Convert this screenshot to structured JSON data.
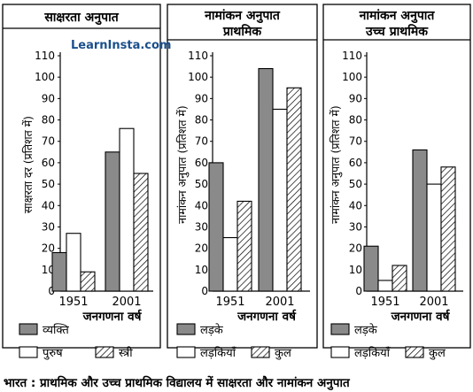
{
  "watermark": "LearnInsta.com",
  "caption": "भारत : प्राथमिक और उच्च प्राथमिक विद्यालय में साक्षरता और नामांकन अनुपात",
  "colors": {
    "gray": "#8a8a8a",
    "white": "#ffffff",
    "stroke": "#000000"
  },
  "chart_data": [
    {
      "type": "bar",
      "title": "साक्षरता अनुपात",
      "title2": "",
      "ylabel": "साक्षरता दर (प्रतिशत में)",
      "xlabel": "जनगणना वर्ष",
      "ylim": [
        0,
        110
      ],
      "yticks": [
        0,
        10,
        20,
        30,
        40,
        50,
        60,
        70,
        80,
        90,
        100,
        110
      ],
      "categories": [
        "1951",
        "2001"
      ],
      "series": [
        {
          "name": "व्यक्ति",
          "fill": "gray",
          "values": [
            18,
            65
          ]
        },
        {
          "name": "पुरुष",
          "fill": "white",
          "values": [
            27,
            76
          ]
        },
        {
          "name": "स्त्री",
          "fill": "hatch",
          "values": [
            9,
            55
          ]
        }
      ]
    },
    {
      "type": "bar",
      "title": "नामांकन अनुपात",
      "title2": "प्राथमिक",
      "ylabel": "नामांकन अनुपात (प्रतिशत में)",
      "xlabel": "जनगणना वर्ष",
      "ylim": [
        0,
        110
      ],
      "yticks": [
        0,
        10,
        20,
        30,
        40,
        50,
        60,
        70,
        80,
        90,
        100,
        110
      ],
      "categories": [
        "1951",
        "2001"
      ],
      "series": [
        {
          "name": "लड़के",
          "fill": "gray",
          "values": [
            60,
            104
          ]
        },
        {
          "name": "लड़कियाँ",
          "fill": "white",
          "values": [
            25,
            85
          ]
        },
        {
          "name": "कुल",
          "fill": "hatch",
          "values": [
            42,
            95
          ]
        }
      ]
    },
    {
      "type": "bar",
      "title": "नामांकन अनुपात",
      "title2": "उच्च प्राथमिक",
      "ylabel": "नामांकन अनुपात (प्रतिशत में)",
      "xlabel": "जनगणना वर्ष",
      "ylim": [
        0,
        110
      ],
      "yticks": [
        0,
        10,
        20,
        30,
        40,
        50,
        60,
        70,
        80,
        90,
        100,
        110
      ],
      "categories": [
        "1951",
        "2001"
      ],
      "series": [
        {
          "name": "लड़के",
          "fill": "gray",
          "values": [
            21,
            66
          ]
        },
        {
          "name": "लड़कियाँ",
          "fill": "white",
          "values": [
            5,
            50
          ]
        },
        {
          "name": "कुल",
          "fill": "hatch",
          "values": [
            12,
            58
          ]
        }
      ]
    }
  ]
}
